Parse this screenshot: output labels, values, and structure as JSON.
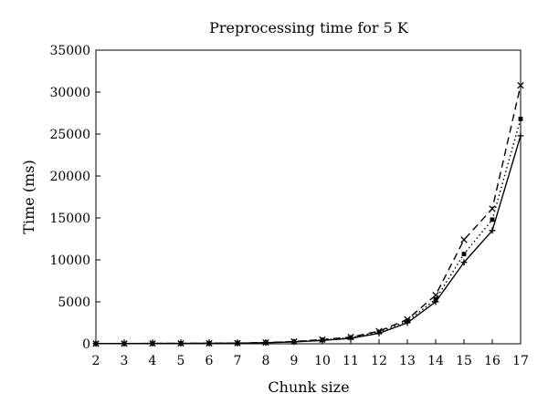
{
  "chart_data": {
    "type": "line",
    "title": "Preprocessing time for 5 K",
    "xlabel": "Chunk size",
    "ylabel": "Time (ms)",
    "x": [
      2,
      3,
      4,
      5,
      6,
      7,
      8,
      9,
      10,
      11,
      12,
      13,
      14,
      15,
      16,
      17
    ],
    "xlim": [
      2,
      17
    ],
    "ylim": [
      0,
      35000
    ],
    "yticks": [
      0,
      5000,
      10000,
      15000,
      20000,
      25000,
      30000,
      35000
    ],
    "grid": false,
    "legend": "none",
    "series": [
      {
        "line_style": "dashed",
        "marker": "x",
        "color": "#000000",
        "values": [
          20,
          30,
          40,
          50,
          60,
          80,
          150,
          270,
          500,
          800,
          1500,
          2900,
          5800,
          12400,
          16100,
          30800
        ]
      },
      {
        "line_style": "dotted",
        "marker": "square",
        "color": "#000000",
        "values": [
          20,
          30,
          40,
          50,
          60,
          75,
          140,
          250,
          450,
          750,
          1400,
          2700,
          5300,
          10700,
          14800,
          26800
        ]
      },
      {
        "line_style": "solid",
        "marker": "plus",
        "color": "#000000",
        "values": [
          20,
          30,
          40,
          50,
          60,
          70,
          130,
          220,
          400,
          650,
          1250,
          2500,
          5000,
          9700,
          13500,
          24800
        ]
      }
    ]
  }
}
